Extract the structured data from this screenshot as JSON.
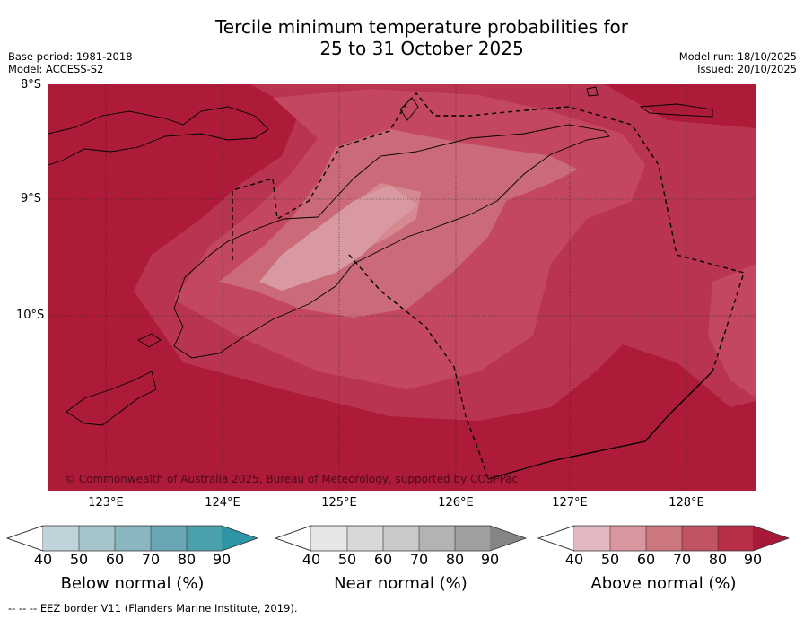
{
  "title": {
    "line1": "Tercile minimum temperature probabilities for",
    "line2": "25 to 31 October 2025"
  },
  "meta": {
    "base_period": "Base period: 1981-2018",
    "model": "Model: ACCESS-S2",
    "model_run": "Model run: 18/10/2025",
    "issued": "Issued: 20/10/2025"
  },
  "map": {
    "lat_labels": [
      "8°S",
      "9°S",
      "10°S"
    ],
    "lon_labels": [
      "123°E",
      "124°E",
      "125°E",
      "126°E",
      "127°E",
      "128°E"
    ],
    "copyright": "© Commonwealth of Australia 2025, Bureau of Meteorology, supported by COSPPac",
    "field": "Above normal probability",
    "levels_percent": [
      90,
      80,
      70,
      60,
      50
    ]
  },
  "colorbars": {
    "below": {
      "label": "Below normal (%)",
      "ticks": [
        "40",
        "50",
        "60",
        "70",
        "80",
        "90"
      ],
      "colors": [
        "#bed3da",
        "#a6c5cb",
        "#89b6c0",
        "#69a7b4",
        "#4ba0ae",
        "#2e95a6"
      ]
    },
    "near": {
      "label": "Near normal (%)",
      "ticks": [
        "40",
        "50",
        "60",
        "70",
        "80",
        "90"
      ],
      "colors": [
        "#e6e6e6",
        "#d8d8d8",
        "#c9c9c9",
        "#b3b3b3",
        "#9f9f9f",
        "#858585"
      ]
    },
    "above": {
      "label": "Above normal (%)",
      "ticks": [
        "40",
        "50",
        "60",
        "70",
        "80",
        "90"
      ],
      "colors": [
        "#e2b7bf",
        "#d8969f",
        "#cc7680",
        "#c15364",
        "#b72e49",
        "#a81838"
      ]
    }
  },
  "footnote": "--  --  -- EEZ border V11 (Flanders Marine Institute, 2019)."
}
